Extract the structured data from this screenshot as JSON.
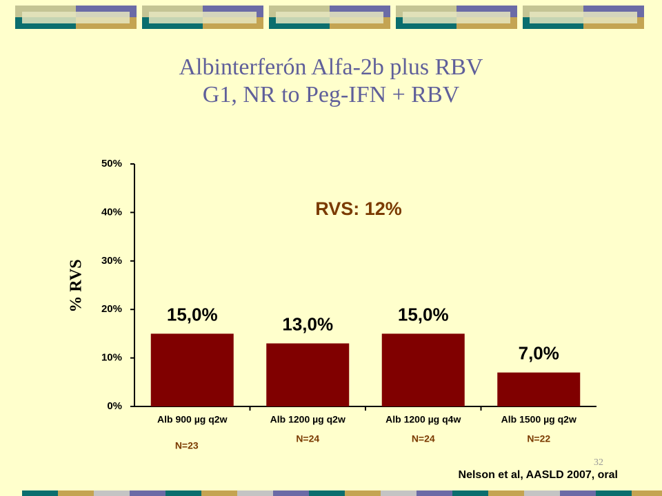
{
  "chart_data": {
    "type": "bar",
    "title": "Albinterferón Alfa-2b plus RBV",
    "subtitle": "G1, NR to Peg-IFN + RBV",
    "y_label": "% RVS",
    "annotation": "RVS: 12%",
    "categories": [
      "Alb 900 µg q2w",
      "Alb 1200 µg q2w",
      "Alb 1200 µg q4w",
      "Alb 1500 µg q2w"
    ],
    "n_labels": [
      "N=23",
      "N=24",
      "N=24",
      "N=22"
    ],
    "values": [
      15,
      13,
      15,
      7
    ],
    "value_labels": [
      "15,0%",
      "13,0%",
      "15,0%",
      "7,0%"
    ],
    "color": "#800000",
    "ylim": [
      0,
      50
    ],
    "yticks": [
      {
        "value": 0,
        "label": "0%"
      },
      {
        "value": 10,
        "label": "10%"
      },
      {
        "value": 20,
        "label": "20%"
      },
      {
        "value": 30,
        "label": "30%"
      },
      {
        "value": 40,
        "label": "40%"
      },
      {
        "value": 50,
        "label": "50%"
      }
    ],
    "source": "Nelson et al, AASLD 2007, oral",
    "page_number": "32"
  }
}
